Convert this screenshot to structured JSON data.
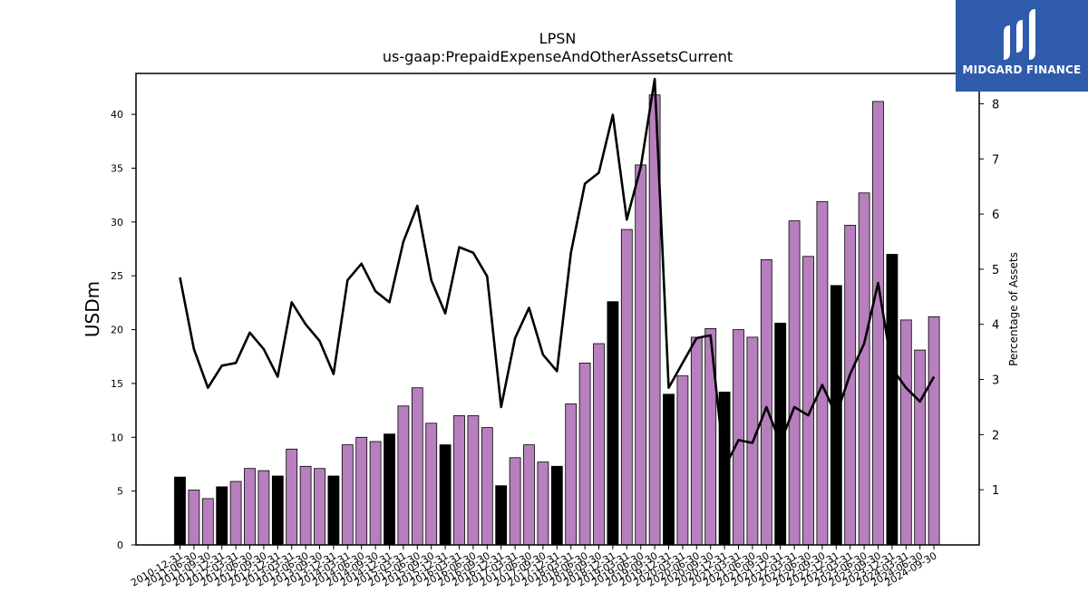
{
  "logo": {
    "text": "MIDGARD FINANCE",
    "color": "#2f5bab"
  },
  "chart_data": {
    "type": "bar",
    "title": "LPSN",
    "subtitle": "us-gaap:PrepaidExpenseAndOtherAssetsCurrent",
    "ylabel": "USDm",
    "y2label": "Percentage of Assets",
    "ylim": [
      0,
      43.8
    ],
    "y2lim": [
      0,
      8.55
    ],
    "yticks": [
      0,
      5,
      10,
      15,
      20,
      25,
      30,
      35,
      40
    ],
    "y2ticks": [
      1,
      2,
      3,
      4,
      5,
      6,
      7,
      8
    ],
    "grid": false,
    "colors": {
      "bar_default": "#b77fbd",
      "bar_highlight": "#000000",
      "line": "#000000"
    },
    "categories": [
      "2010-12-31",
      "2011-06-30",
      "2011-09-30",
      "2011-12-31",
      "2012-03-31",
      "2012-06-30",
      "2012-09-30",
      "2012-12-31",
      "2013-03-31",
      "2013-06-30",
      "2013-09-30",
      "2013-12-31",
      "2014-03-31",
      "2014-06-30",
      "2014-09-30",
      "2014-12-31",
      "2015-03-31",
      "2015-06-30",
      "2015-09-30",
      "2015-12-31",
      "2016-03-31",
      "2016-06-30",
      "2016-09-30",
      "2016-12-31",
      "2017-03-31",
      "2017-06-30",
      "2017-09-30",
      "2017-12-31",
      "2018-03-31",
      "2018-06-30",
      "2018-09-30",
      "2018-12-31",
      "2019-03-31",
      "2019-06-30",
      "2019-09-30",
      "2019-12-31",
      "2020-03-31",
      "2020-06-30",
      "2020-09-30",
      "2020-12-31",
      "2021-03-31",
      "2021-06-30",
      "2021-09-30",
      "2021-12-31",
      "2022-03-31",
      "2022-06-30",
      "2022-09-30",
      "2022-12-31",
      "2023-03-31",
      "2023-06-30",
      "2023-09-30",
      "2023-12-31",
      "2024-03-31",
      "2024-06-30",
      "2024-09-30"
    ],
    "series": [
      {
        "type": "bar",
        "values": [
          6.3,
          5.1,
          4.3,
          5.4,
          5.9,
          7.1,
          6.9,
          6.4,
          8.9,
          7.3,
          7.1,
          6.4,
          9.3,
          10.0,
          9.6,
          10.3,
          12.9,
          14.6,
          11.3,
          9.3,
          12.0,
          12.0,
          10.9,
          5.5,
          8.1,
          9.3,
          7.7,
          7.3,
          13.1,
          16.9,
          18.7,
          22.6,
          29.3,
          35.3,
          41.8,
          14.0,
          15.7,
          19.3,
          20.1,
          14.2,
          20.0,
          19.3,
          26.5,
          20.6,
          30.1,
          26.8,
          31.9,
          24.1,
          29.7,
          32.7,
          41.2,
          27.0,
          20.9,
          18.1,
          21.2
        ],
        "highlight": [
          true,
          false,
          false,
          true,
          false,
          false,
          false,
          true,
          false,
          false,
          false,
          true,
          false,
          false,
          false,
          true,
          false,
          false,
          false,
          true,
          false,
          false,
          false,
          true,
          false,
          false,
          false,
          true,
          false,
          false,
          false,
          true,
          false,
          false,
          false,
          true,
          false,
          false,
          false,
          true,
          false,
          false,
          false,
          true,
          false,
          false,
          false,
          true,
          false,
          false,
          false,
          true,
          false,
          false,
          false
        ]
      },
      {
        "type": "line",
        "axis": "right",
        "values": [
          4.85,
          3.55,
          2.85,
          3.25,
          3.3,
          3.85,
          3.55,
          3.05,
          4.4,
          4.0,
          3.7,
          3.1,
          4.8,
          5.1,
          4.6,
          4.4,
          5.5,
          6.15,
          4.8,
          4.2,
          5.4,
          5.3,
          4.87,
          2.5,
          3.75,
          4.3,
          3.45,
          3.15,
          5.3,
          6.55,
          6.75,
          7.8,
          5.9,
          6.85,
          8.45,
          2.85,
          3.3,
          3.75,
          3.8,
          1.4,
          1.9,
          1.85,
          2.5,
          1.85,
          2.5,
          2.35,
          2.9,
          2.35,
          3.1,
          3.65,
          4.75,
          3.2,
          2.85,
          2.6,
          3.05
        ]
      }
    ]
  }
}
